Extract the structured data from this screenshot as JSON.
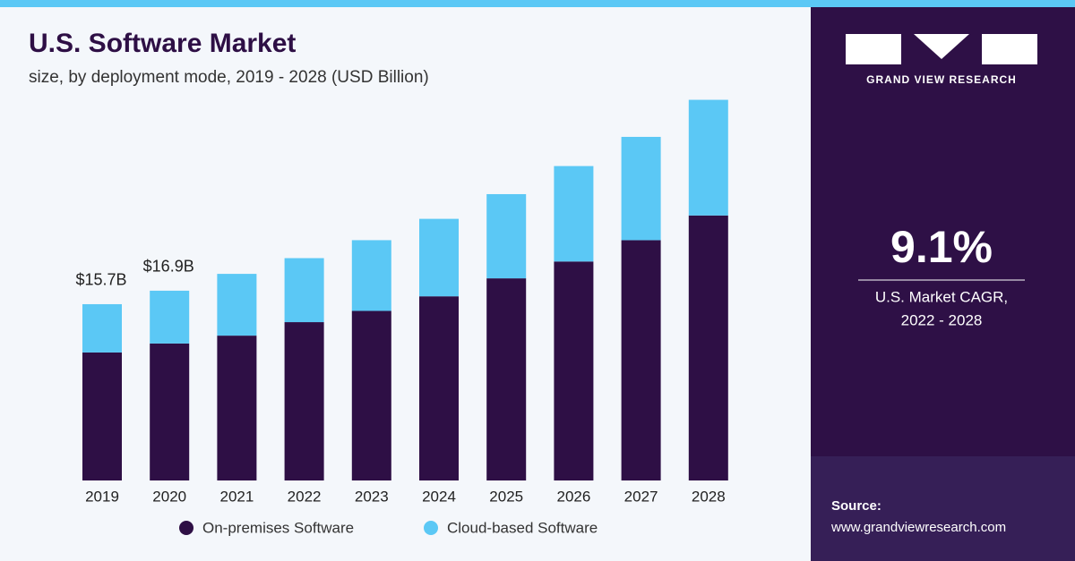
{
  "chart_data": {
    "type": "stacked_bar",
    "title": "U.S. Software Market",
    "subtitle": "size, by deployment mode, 2019 - 2028 (USD Billion)",
    "categories": [
      "2019",
      "2020",
      "2021",
      "2022",
      "2023",
      "2024",
      "2025",
      "2026",
      "2027",
      "2028"
    ],
    "series": [
      {
        "name": "On-premises Software",
        "color": "#2e0f45",
        "values": [
          11.4,
          12.2,
          12.9,
          14.1,
          15.1,
          16.4,
          18.0,
          19.5,
          21.4,
          23.6
        ]
      },
      {
        "name": "Cloud-based Software",
        "color": "#5bc8f5",
        "values": [
          4.3,
          4.7,
          5.5,
          5.7,
          6.3,
          6.9,
          7.5,
          8.5,
          9.2,
          10.3
        ]
      }
    ],
    "annotations": [
      {
        "category": "2019",
        "value": 15.7,
        "label": "$15.7B"
      },
      {
        "category": "2020",
        "value": 16.9,
        "label": "$16.9B"
      }
    ]
  },
  "panel": {
    "brand": "GRAND VIEW RESEARCH",
    "cagr": "9.1%",
    "cagr_label": [
      "U.S. Market CAGR,",
      "2022 - 2028"
    ],
    "source_title": "Source:",
    "source_url": "www.grandviewresearch.com"
  }
}
